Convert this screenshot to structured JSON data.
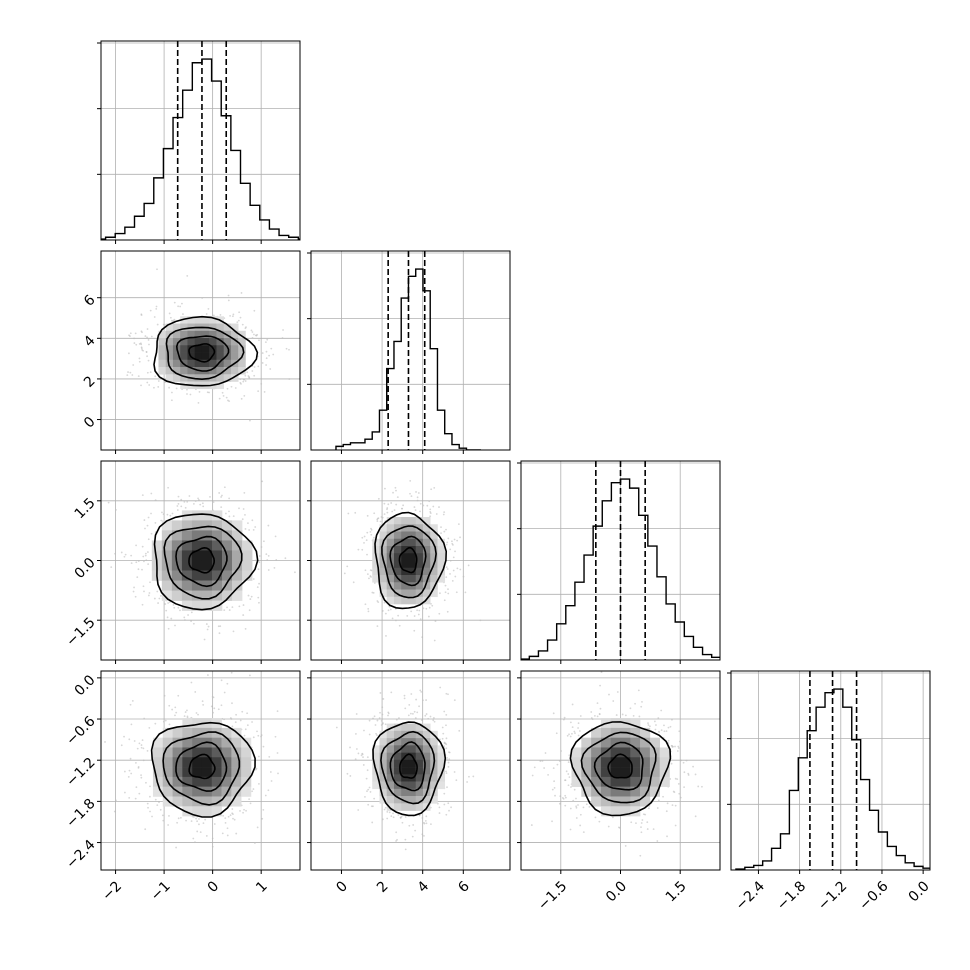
{
  "chart_data": {
    "type": "corner",
    "n_params": 4,
    "grid": true,
    "quantile_lines": "dashed",
    "colors": {
      "line": "#000000",
      "grid": "#b0b0b0",
      "scatter": "#bdbdbd"
    },
    "params": [
      {
        "range": [
          -2.3,
          1.8
        ],
        "ticks": [
          -2,
          -1,
          0,
          1
        ],
        "tick_labels": [
          "−2",
          "−1",
          "0",
          "1"
        ],
        "quantiles": [
          -0.72,
          -0.22,
          0.28
        ],
        "center": -0.22,
        "sigma": 0.52,
        "hist": [
          0.5,
          1.5,
          3.5,
          7,
          13,
          20,
          34,
          50,
          67,
          82,
          97,
          99,
          87,
          68,
          49,
          31,
          19,
          11,
          6,
          2.5,
          1.5,
          0.5
        ],
        "hist_max": 99
      },
      {
        "range": [
          -1.5,
          8.3
        ],
        "ticks": [
          0,
          2,
          4,
          6
        ],
        "tick_labels": [
          "0",
          "2",
          "4",
          "6"
        ],
        "quantiles": [
          2.3,
          3.3,
          4.1
        ],
        "center": 3.3,
        "sigma": 0.85,
        "hist": [
          2,
          3,
          4,
          4,
          6,
          10,
          22,
          45,
          60,
          84,
          96,
          100,
          88,
          56,
          22,
          9,
          3,
          1,
          0,
          0
        ],
        "hist_max": 100
      },
      {
        "range": [
          -2.5,
          2.5
        ],
        "ticks": [
          -1.5,
          0.0,
          1.5
        ],
        "tick_labels": [
          "−1.5",
          "0.0",
          "1.5"
        ],
        "quantiles": [
          -0.62,
          0.0,
          0.62
        ],
        "center": 0.0,
        "sigma": 0.6,
        "hist": [
          0.5,
          2,
          5,
          11,
          20,
          30,
          43,
          58,
          74,
          88,
          98,
          100,
          95,
          80,
          63,
          46,
          31,
          21,
          13,
          7,
          3,
          1.5
        ],
        "hist_max": 100
      },
      {
        "range": [
          -2.8,
          0.1
        ],
        "ticks": [
          -2.4,
          -1.8,
          -1.2,
          -0.6,
          0.0
        ],
        "tick_labels": [
          "−2.4",
          "−1.8",
          "−1.2",
          "−0.6",
          "0.0"
        ],
        "quantiles": [
          -1.65,
          -1.32,
          -0.97
        ],
        "center": -1.3,
        "sigma": 0.34,
        "hist": [
          0.5,
          1.5,
          2.5,
          5,
          12,
          20,
          44,
          62,
          77,
          90,
          98,
          100,
          90,
          72,
          50,
          33,
          21,
          13,
          8,
          4,
          2,
          1
        ],
        "hist_max": 100
      }
    ]
  }
}
